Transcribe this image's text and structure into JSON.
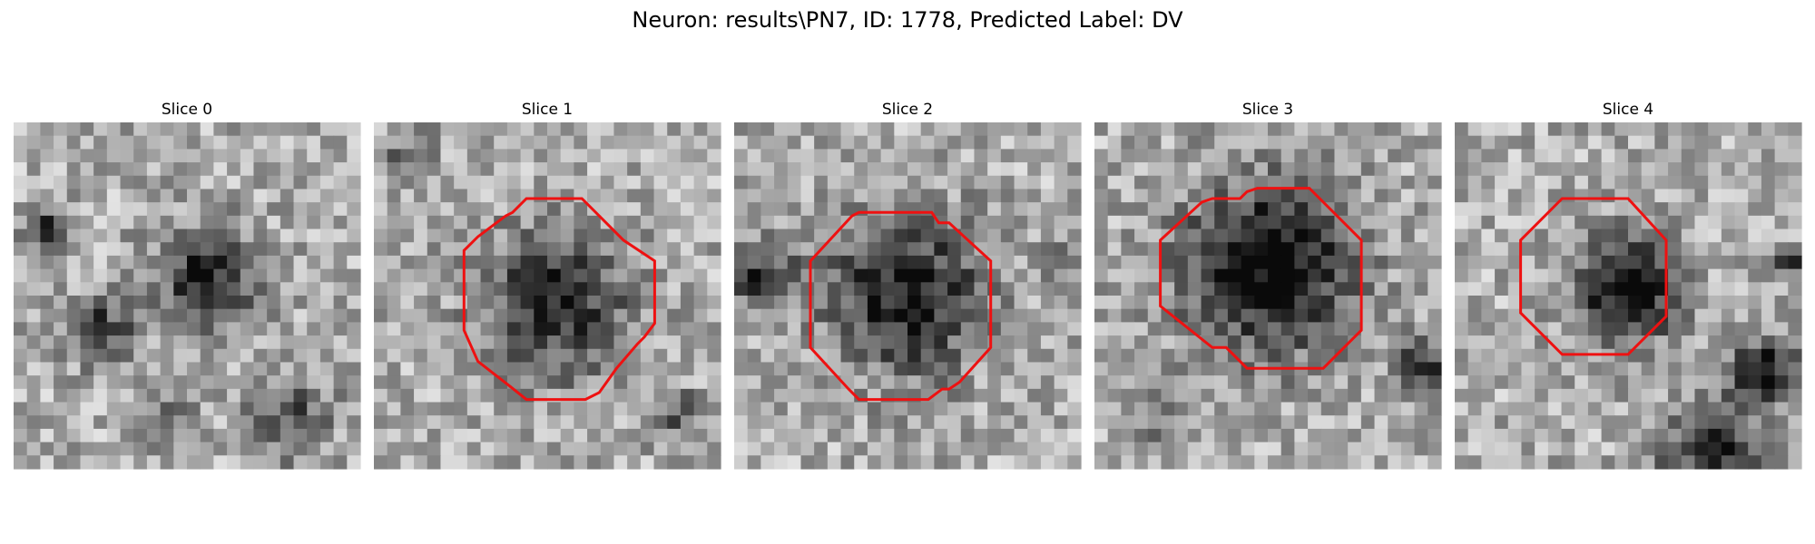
{
  "figure": {
    "title": "Neuron: results\\PN7, ID: 1778, Predicted Label: DV",
    "contour_color": "#ee1111",
    "colormap": "gray"
  },
  "panels": [
    {
      "title": "Slice 0",
      "has_contour": false,
      "blobs": [
        [
          0.55,
          0.45,
          0.18,
          0.55
        ],
        [
          0.25,
          0.6,
          0.12,
          0.45
        ],
        [
          0.1,
          0.3,
          0.08,
          0.5
        ],
        [
          0.8,
          0.85,
          0.15,
          0.35
        ],
        [
          0.45,
          0.85,
          0.1,
          0.25
        ]
      ],
      "contour": []
    },
    {
      "title": "Slice 1",
      "has_contour": true,
      "blobs": [
        [
          0.52,
          0.52,
          0.26,
          0.55
        ],
        [
          0.88,
          0.85,
          0.1,
          0.3
        ],
        [
          0.1,
          0.1,
          0.1,
          0.25
        ]
      ],
      "contour": [
        [
          0.44,
          0.22
        ],
        [
          0.6,
          0.22
        ],
        [
          0.72,
          0.34
        ],
        [
          0.81,
          0.4
        ],
        [
          0.81,
          0.58
        ],
        [
          0.78,
          0.62
        ],
        [
          0.76,
          0.64
        ],
        [
          0.7,
          0.71
        ],
        [
          0.65,
          0.78
        ],
        [
          0.61,
          0.8
        ],
        [
          0.44,
          0.8
        ],
        [
          0.39,
          0.76
        ],
        [
          0.3,
          0.69
        ],
        [
          0.26,
          0.6
        ],
        [
          0.26,
          0.37
        ],
        [
          0.3,
          0.33
        ],
        [
          0.38,
          0.27
        ],
        [
          0.4,
          0.26
        ]
      ]
    },
    {
      "title": "Slice 2",
      "has_contour": true,
      "blobs": [
        [
          0.5,
          0.5,
          0.28,
          0.6
        ],
        [
          0.08,
          0.45,
          0.12,
          0.55
        ],
        [
          0.95,
          0.4,
          0.08,
          0.3
        ]
      ],
      "contour": [
        [
          0.36,
          0.26
        ],
        [
          0.57,
          0.26
        ],
        [
          0.59,
          0.29
        ],
        [
          0.62,
          0.29
        ],
        [
          0.74,
          0.4
        ],
        [
          0.74,
          0.65
        ],
        [
          0.65,
          0.75
        ],
        [
          0.62,
          0.77
        ],
        [
          0.6,
          0.77
        ],
        [
          0.56,
          0.8
        ],
        [
          0.36,
          0.8
        ],
        [
          0.33,
          0.77
        ],
        [
          0.22,
          0.65
        ],
        [
          0.22,
          0.4
        ],
        [
          0.34,
          0.27
        ]
      ]
    },
    {
      "title": "Slice 3",
      "has_contour": true,
      "blobs": [
        [
          0.5,
          0.42,
          0.3,
          0.72
        ],
        [
          0.95,
          0.7,
          0.1,
          0.45
        ],
        [
          0.2,
          0.85,
          0.12,
          0.2
        ]
      ],
      "contour": [
        [
          0.34,
          0.22
        ],
        [
          0.42,
          0.22
        ],
        [
          0.44,
          0.2
        ],
        [
          0.47,
          0.19
        ],
        [
          0.62,
          0.19
        ],
        [
          0.77,
          0.34
        ],
        [
          0.77,
          0.6
        ],
        [
          0.66,
          0.71
        ],
        [
          0.44,
          0.71
        ],
        [
          0.38,
          0.65
        ],
        [
          0.34,
          0.65
        ],
        [
          0.19,
          0.53
        ],
        [
          0.19,
          0.34
        ],
        [
          0.31,
          0.23
        ]
      ]
    },
    {
      "title": "Slice 4",
      "has_contour": true,
      "blobs": [
        [
          0.5,
          0.48,
          0.18,
          0.75
        ],
        [
          0.9,
          0.72,
          0.12,
          0.6
        ],
        [
          0.75,
          0.97,
          0.2,
          0.5
        ],
        [
          0.97,
          0.4,
          0.06,
          0.4
        ]
      ],
      "contour": [
        [
          0.31,
          0.22
        ],
        [
          0.5,
          0.22
        ],
        [
          0.61,
          0.34
        ],
        [
          0.61,
          0.56
        ],
        [
          0.5,
          0.67
        ],
        [
          0.31,
          0.67
        ],
        [
          0.19,
          0.55
        ],
        [
          0.19,
          0.34
        ]
      ]
    }
  ]
}
